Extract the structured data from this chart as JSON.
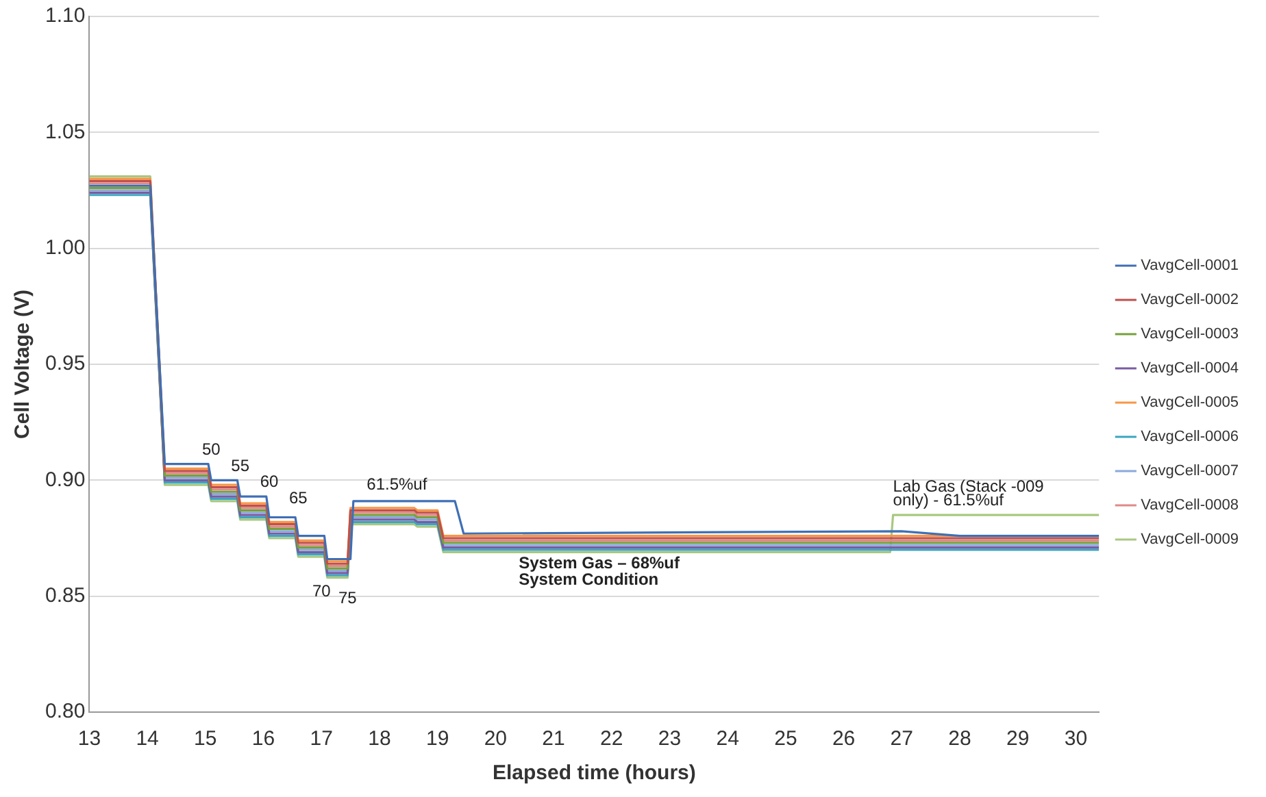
{
  "chart_data": {
    "type": "line",
    "xlabel": "Elapsed time (hours)",
    "ylabel": "Cell Voltage (V)",
    "xlim": [
      13,
      30.4
    ],
    "xticks": [
      13,
      14,
      15,
      16,
      17,
      18,
      19,
      20,
      21,
      22,
      23,
      24,
      25,
      26,
      27,
      28,
      29,
      30
    ],
    "ylim": [
      0.8,
      1.1
    ],
    "yticks": [
      {
        "value": 0.8,
        "label": "0.80"
      },
      {
        "value": 0.85,
        "label": "0.85"
      },
      {
        "value": 0.9,
        "label": "0.90"
      },
      {
        "value": 0.95,
        "label": "0.95"
      },
      {
        "value": 1.0,
        "label": "1.00"
      },
      {
        "value": 1.05,
        "label": "1.05"
      },
      {
        "value": 1.1,
        "label": "1.10"
      }
    ],
    "grid": "y",
    "legend": "right",
    "marker": "none",
    "line_style": "solid",
    "x": [
      13,
      14.05,
      14.3,
      15.05,
      15.1,
      15.55,
      15.6,
      16.05,
      16.1,
      16.55,
      16.6,
      17.05,
      17.1,
      17.45,
      17.5,
      18.6,
      18.65,
      19.0,
      19.1,
      30.4
    ],
    "series": [
      {
        "name": "VavgCell-0001",
        "color": "#3f6fb5",
        "x": [
          13,
          14.05,
          14.3,
          15.05,
          15.1,
          15.55,
          15.6,
          16.05,
          16.1,
          16.55,
          16.6,
          17.05,
          17.1,
          17.5,
          17.55,
          19.3,
          19.45,
          27,
          28,
          30.4
        ],
        "values": [
          1.027,
          1.027,
          0.907,
          0.907,
          0.9,
          0.9,
          0.893,
          0.893,
          0.884,
          0.884,
          0.876,
          0.876,
          0.866,
          0.866,
          0.891,
          0.891,
          0.877,
          0.878,
          0.876,
          0.876
        ]
      },
      {
        "name": "VavgCell-0002",
        "color": "#c0504d",
        "values": [
          1.029,
          1.029,
          0.904,
          0.904,
          0.897,
          0.897,
          0.889,
          0.889,
          0.881,
          0.881,
          0.873,
          0.873,
          0.864,
          0.864,
          0.887,
          0.887,
          0.886,
          0.886,
          0.875,
          0.875
        ]
      },
      {
        "name": "VavgCell-0003",
        "color": "#77a03c",
        "values": [
          1.026,
          1.026,
          0.902,
          0.902,
          0.895,
          0.895,
          0.887,
          0.887,
          0.879,
          0.879,
          0.871,
          0.871,
          0.862,
          0.862,
          0.885,
          0.885,
          0.884,
          0.884,
          0.873,
          0.873
        ]
      },
      {
        "name": "VavgCell-0004",
        "color": "#7a5ba3",
        "values": [
          1.024,
          1.024,
          0.9,
          0.9,
          0.893,
          0.893,
          0.885,
          0.885,
          0.877,
          0.877,
          0.869,
          0.869,
          0.86,
          0.86,
          0.883,
          0.883,
          0.882,
          0.882,
          0.871,
          0.871
        ]
      },
      {
        "name": "VavgCell-0005",
        "color": "#f79646",
        "values": [
          1.03,
          1.03,
          0.905,
          0.905,
          0.898,
          0.898,
          0.89,
          0.89,
          0.882,
          0.882,
          0.874,
          0.874,
          0.865,
          0.865,
          0.888,
          0.888,
          0.887,
          0.887,
          0.876,
          0.876
        ]
      },
      {
        "name": "VavgCell-0006",
        "color": "#3ba5c0",
        "values": [
          1.023,
          1.023,
          0.899,
          0.899,
          0.892,
          0.892,
          0.884,
          0.884,
          0.876,
          0.876,
          0.868,
          0.868,
          0.859,
          0.859,
          0.882,
          0.882,
          0.881,
          0.881,
          0.87,
          0.87
        ]
      },
      {
        "name": "VavgCell-0007",
        "color": "#8aa9db",
        "values": [
          1.025,
          1.025,
          0.901,
          0.901,
          0.894,
          0.894,
          0.886,
          0.886,
          0.878,
          0.878,
          0.87,
          0.87,
          0.861,
          0.861,
          0.884,
          0.884,
          0.883,
          0.883,
          0.872,
          0.872
        ]
      },
      {
        "name": "VavgCell-0008",
        "color": "#e08a88",
        "values": [
          1.028,
          1.028,
          0.903,
          0.903,
          0.896,
          0.896,
          0.888,
          0.888,
          0.88,
          0.88,
          0.872,
          0.872,
          0.863,
          0.863,
          0.886,
          0.886,
          0.885,
          0.885,
          0.874,
          0.874
        ]
      },
      {
        "name": "VavgCell-0009",
        "color": "#a8c880",
        "x": [
          13,
          14.05,
          14.3,
          15.05,
          15.1,
          15.55,
          15.6,
          16.05,
          16.1,
          16.55,
          16.6,
          17.05,
          17.1,
          17.45,
          17.5,
          18.6,
          18.65,
          19.0,
          19.1,
          26.8,
          26.85,
          30.4
        ],
        "values": [
          1.031,
          1.031,
          0.898,
          0.898,
          0.891,
          0.891,
          0.883,
          0.883,
          0.875,
          0.875,
          0.867,
          0.867,
          0.858,
          0.858,
          0.881,
          0.881,
          0.88,
          0.88,
          0.869,
          0.869,
          0.885,
          0.885
        ]
      }
    ],
    "annotations": [
      "50",
      "55",
      "60",
      "65",
      "70",
      "75",
      "61.5%uf",
      "System Gas – 68%uf",
      "System Condition",
      "Lab Gas (Stack -009",
      "only) - 61.5%uf"
    ]
  }
}
